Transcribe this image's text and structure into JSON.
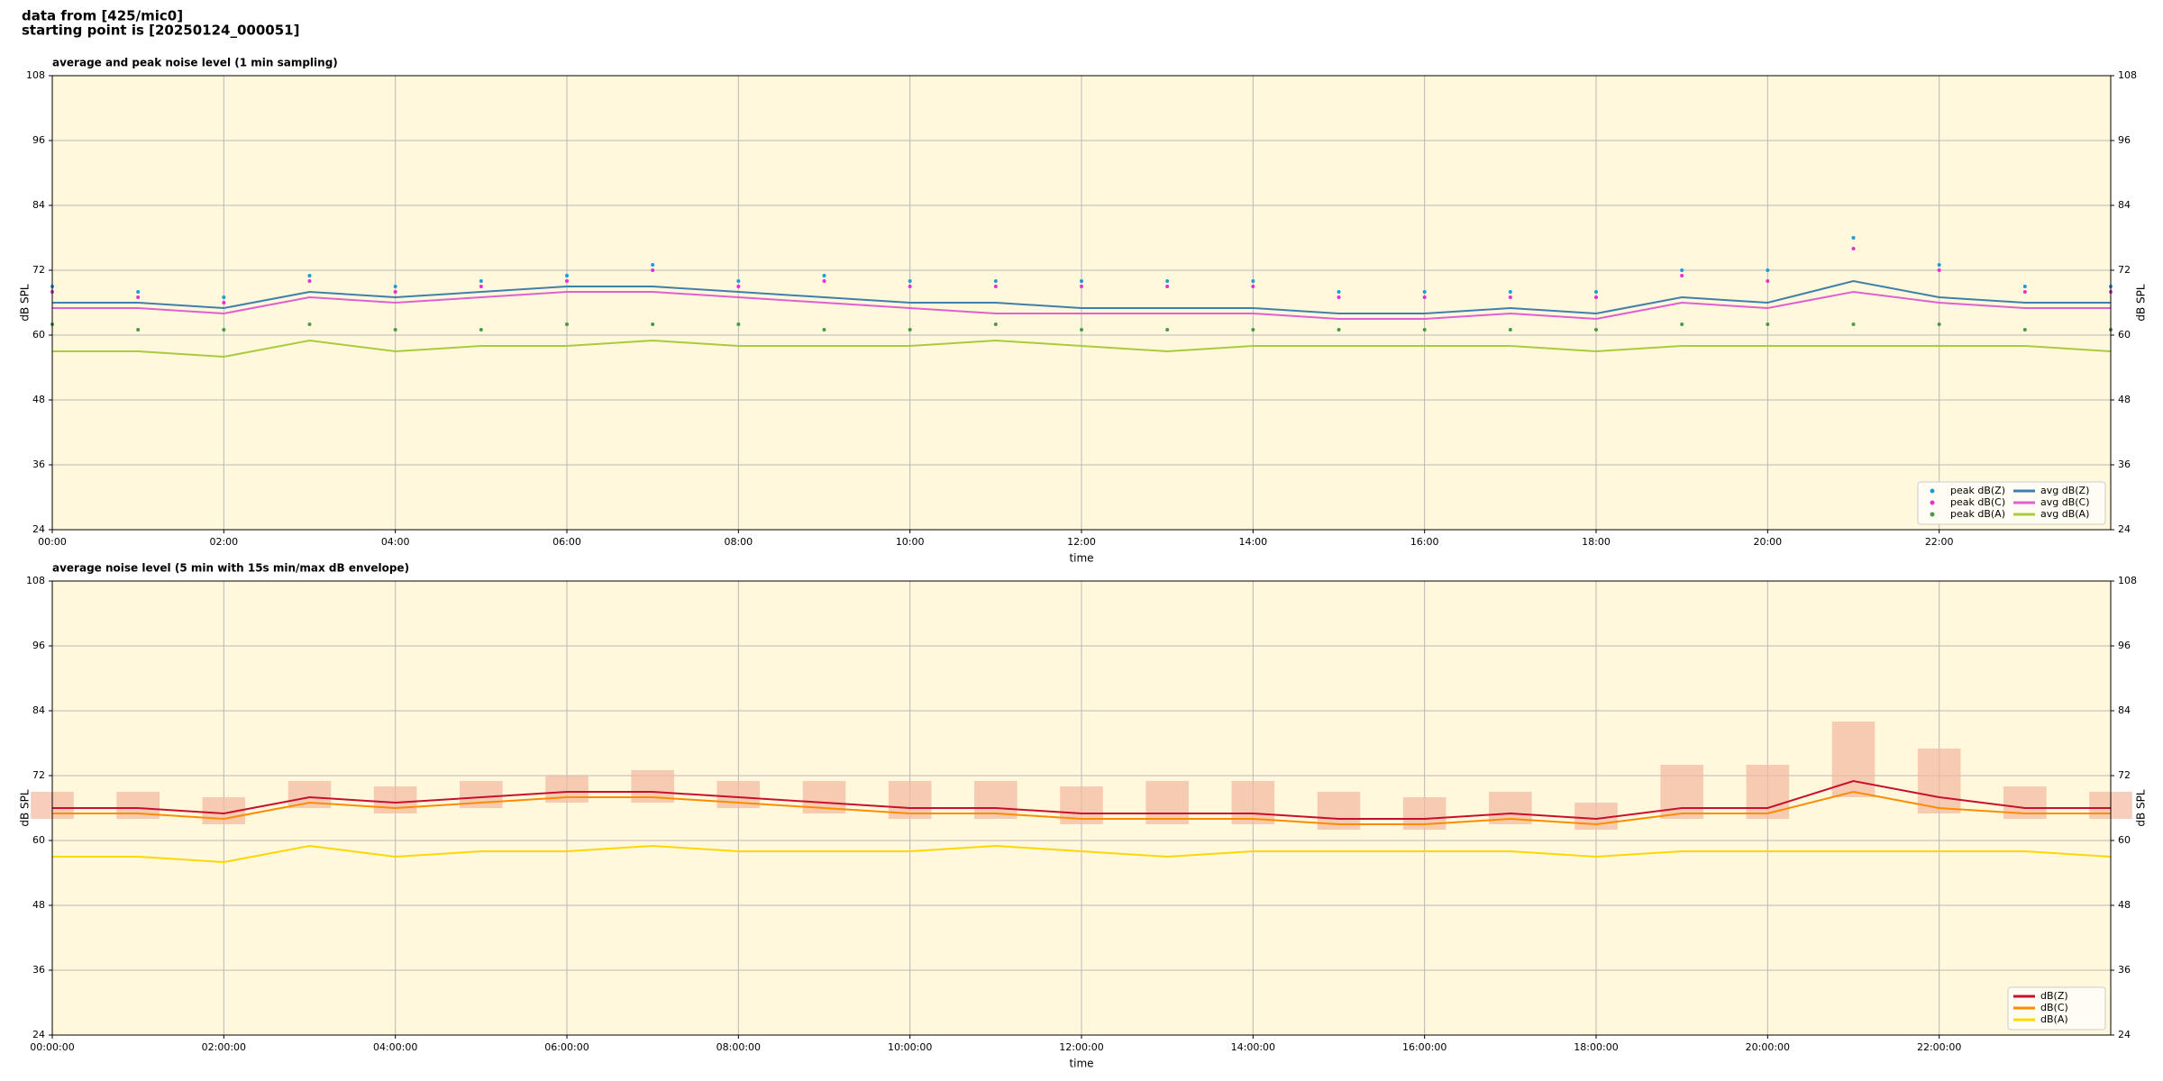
{
  "header": [
    "data from [425/mic0]",
    "starting point is [20250124_000051]"
  ],
  "chart_data": [
    {
      "type": "line",
      "title": "average and peak noise level (1 min sampling)",
      "x_label": "time",
      "y_label": "dB SPL",
      "background": "#fff8dc",
      "grid": true,
      "legend": "lower right",
      "legend_columns": 2,
      "x": [
        0,
        1,
        2,
        3,
        4,
        5,
        6,
        7,
        8,
        9,
        10,
        11,
        12,
        13,
        14,
        15,
        16,
        17,
        18,
        19,
        20,
        21,
        22,
        23,
        24
      ],
      "xlim": [
        0,
        24
      ],
      "xticks": [
        {
          "value": 0,
          "label": "00:00"
        },
        {
          "value": 2,
          "label": "02:00"
        },
        {
          "value": 4,
          "label": "04:00"
        },
        {
          "value": 6,
          "label": "06:00"
        },
        {
          "value": 8,
          "label": "08:00"
        },
        {
          "value": 10,
          "label": "10:00"
        },
        {
          "value": 12,
          "label": "12:00"
        },
        {
          "value": 14,
          "label": "14:00"
        },
        {
          "value": 16,
          "label": "16:00"
        },
        {
          "value": 18,
          "label": "18:00"
        },
        {
          "value": 20,
          "label": "20:00"
        },
        {
          "value": 22,
          "label": "22:00"
        }
      ],
      "ylim": [
        24,
        108
      ],
      "yticks": [
        24,
        36,
        48,
        60,
        72,
        84,
        96,
        108
      ],
      "series": [
        {
          "name": "peak dB(Z)",
          "style": "dots",
          "color": "#1f9bd8",
          "values": [
            69,
            68,
            67,
            71,
            69,
            70,
            71,
            73,
            70,
            71,
            70,
            70,
            70,
            70,
            70,
            68,
            68,
            68,
            68,
            72,
            72,
            78,
            73,
            69,
            69
          ]
        },
        {
          "name": "peak dB(C)",
          "style": "dots",
          "color": "#e830d0",
          "values": [
            68,
            67,
            66,
            70,
            68,
            69,
            70,
            72,
            69,
            70,
            69,
            69,
            69,
            69,
            69,
            67,
            67,
            67,
            67,
            71,
            70,
            76,
            72,
            68,
            68
          ]
        },
        {
          "name": "peak dB(A)",
          "style": "dots",
          "color": "#4a9a4a",
          "values": [
            62,
            61,
            61,
            62,
            61,
            61,
            62,
            62,
            62,
            61,
            61,
            62,
            61,
            61,
            61,
            61,
            61,
            61,
            61,
            62,
            62,
            62,
            62,
            61,
            61
          ]
        },
        {
          "name": "avg dB(Z)",
          "style": "line",
          "color": "#3f7faa",
          "values": [
            66,
            66,
            65,
            68,
            67,
            68,
            69,
            69,
            68,
            67,
            66,
            66,
            65,
            65,
            65,
            64,
            64,
            65,
            64,
            67,
            66,
            70,
            67,
            66,
            66
          ]
        },
        {
          "name": "avg dB(C)",
          "style": "line",
          "color": "#e060d0",
          "values": [
            65,
            65,
            64,
            67,
            66,
            67,
            68,
            68,
            67,
            66,
            65,
            64,
            64,
            64,
            64,
            63,
            63,
            64,
            63,
            66,
            65,
            68,
            66,
            65,
            65
          ]
        },
        {
          "name": "avg dB(A)",
          "style": "line",
          "color": "#a8cc3c",
          "values": [
            57,
            57,
            56,
            59,
            57,
            58,
            58,
            59,
            58,
            58,
            58,
            59,
            58,
            57,
            58,
            58,
            58,
            58,
            57,
            58,
            58,
            58,
            58,
            58,
            57
          ]
        }
      ]
    },
    {
      "type": "line",
      "title": "average noise level (5 min with 15s min/max dB envelope)",
      "x_label": "time",
      "y_label": "dB SPL",
      "background": "#fff8dc",
      "grid": true,
      "legend": "lower right",
      "legend_columns": 1,
      "x": [
        0,
        1,
        2,
        3,
        4,
        5,
        6,
        7,
        8,
        9,
        10,
        11,
        12,
        13,
        14,
        15,
        16,
        17,
        18,
        19,
        20,
        21,
        22,
        23,
        24
      ],
      "xlim": [
        0,
        24
      ],
      "xticks": [
        {
          "value": 0,
          "label": "00:00:00"
        },
        {
          "value": 2,
          "label": "02:00:00"
        },
        {
          "value": 4,
          "label": "04:00:00"
        },
        {
          "value": 6,
          "label": "06:00:00"
        },
        {
          "value": 8,
          "label": "08:00:00"
        },
        {
          "value": 10,
          "label": "10:00:00"
        },
        {
          "value": 12,
          "label": "12:00:00"
        },
        {
          "value": 14,
          "label": "14:00:00"
        },
        {
          "value": 16,
          "label": "16:00:00"
        },
        {
          "value": 18,
          "label": "18:00:00"
        },
        {
          "value": 20,
          "label": "20:00:00"
        },
        {
          "value": 22,
          "label": "22:00:00"
        }
      ],
      "ylim": [
        24,
        108
      ],
      "yticks": [
        24,
        36,
        48,
        60,
        72,
        84,
        96,
        108
      ],
      "envelope_color": "#f4b8a0",
      "envelope_min": [
        64,
        64,
        63,
        66,
        65,
        66,
        67,
        67,
        66,
        65,
        64,
        64,
        63,
        63,
        63,
        62,
        62,
        63,
        62,
        64,
        64,
        68,
        65,
        64,
        64
      ],
      "envelope_max": [
        69,
        69,
        68,
        71,
        70,
        71,
        72,
        73,
        71,
        71,
        71,
        71,
        70,
        71,
        71,
        69,
        68,
        69,
        67,
        74,
        74,
        82,
        77,
        70,
        69
      ],
      "series": [
        {
          "name": "dB(Z)",
          "style": "line",
          "color": "#c8102e",
          "values": [
            66,
            66,
            65,
            68,
            67,
            68,
            69,
            69,
            68,
            67,
            66,
            66,
            65,
            65,
            65,
            64,
            64,
            65,
            64,
            66,
            66,
            71,
            68,
            66,
            66
          ]
        },
        {
          "name": "dB(C)",
          "style": "line",
          "color": "#ff8c00",
          "values": [
            65,
            65,
            64,
            67,
            66,
            67,
            68,
            68,
            67,
            66,
            65,
            65,
            64,
            64,
            64,
            63,
            63,
            64,
            63,
            65,
            65,
            69,
            66,
            65,
            65
          ]
        },
        {
          "name": "dB(A)",
          "style": "line",
          "color": "#ffd700",
          "values": [
            57,
            57,
            56,
            59,
            57,
            58,
            58,
            59,
            58,
            58,
            58,
            59,
            58,
            57,
            58,
            58,
            58,
            58,
            57,
            58,
            58,
            58,
            58,
            58,
            57
          ]
        }
      ]
    }
  ]
}
